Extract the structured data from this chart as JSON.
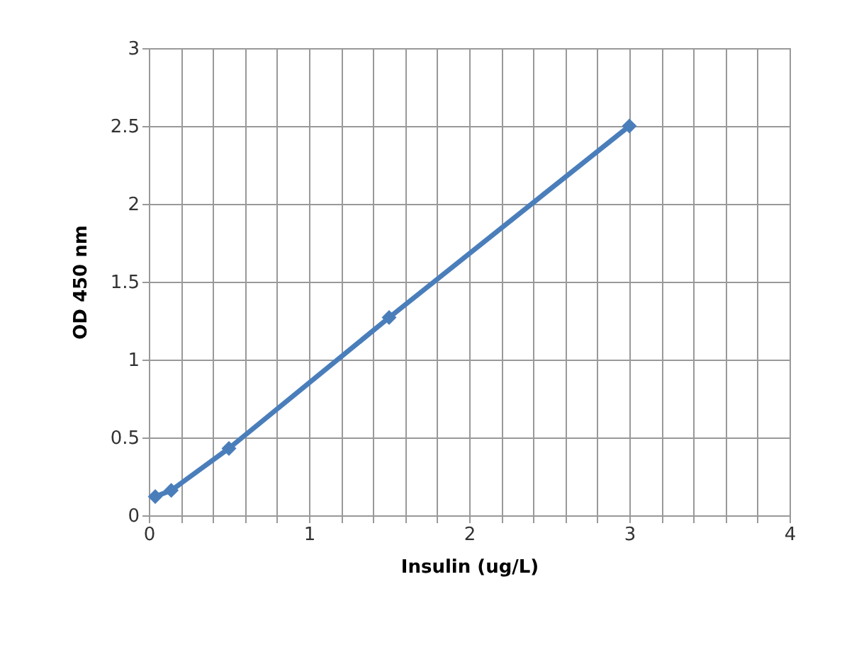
{
  "chart_data": {
    "type": "line",
    "xlabel": "Insulin (ug/L)",
    "ylabel": "OD 450 nm",
    "x": [
      0.04,
      0.14,
      0.5,
      1.5,
      3
    ],
    "series": [
      {
        "color": "#4a7ebb",
        "values": [
          0.12,
          0.16,
          0.43,
          1.27,
          2.5
        ]
      }
    ],
    "xlim": [
      0,
      4
    ],
    "ylim": [
      0,
      3
    ],
    "xticks": [
      0,
      {
        "value": 0.2,
        "label": null
      },
      {
        "value": 0.4,
        "label": null
      },
      {
        "value": 0.6,
        "label": null
      },
      {
        "value": 0.8,
        "label": null
      },
      1,
      {
        "value": 1.2,
        "label": null
      },
      {
        "value": 1.4,
        "label": null
      },
      {
        "value": 1.6,
        "label": null
      },
      {
        "value": 1.8,
        "label": null
      },
      2,
      {
        "value": 2.2,
        "label": null
      },
      {
        "value": 2.4,
        "label": null
      },
      {
        "value": 2.6,
        "label": null
      },
      {
        "value": 2.8,
        "label": null
      },
      3,
      {
        "value": 3.2,
        "label": null
      },
      {
        "value": 3.4,
        "label": null
      },
      {
        "value": 3.6,
        "label": null
      },
      {
        "value": 3.8,
        "label": null
      },
      4
    ],
    "yticks": [
      0,
      0.5,
      1,
      1.5,
      2,
      2.5,
      3
    ],
    "grid": true,
    "marker": "diamond",
    "line_style": "solid",
    "legend": false
  }
}
